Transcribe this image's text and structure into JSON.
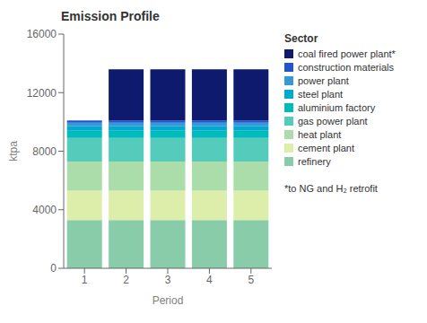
{
  "chart_data": {
    "type": "bar",
    "title": "Emission Profile",
    "x_label": "Period",
    "y_label": "ktpa",
    "categories": [
      "1",
      "2",
      "3",
      "4",
      "5"
    ],
    "series": [
      {
        "name": "coal fired power plant*",
        "color": "#0d1a6e",
        "values": [
          0,
          3500,
          3500,
          3500,
          3500
        ]
      },
      {
        "name": "construction materials",
        "color": "#2255cc",
        "values": [
          150,
          150,
          150,
          150,
          150
        ]
      },
      {
        "name": "power plant",
        "color": "#3399dd",
        "values": [
          250,
          250,
          250,
          250,
          250
        ]
      },
      {
        "name": "steel plant",
        "color": "#00aacc",
        "values": [
          300,
          300,
          300,
          300,
          300
        ]
      },
      {
        "name": "aluminium factory",
        "color": "#00bbbb",
        "values": [
          500,
          500,
          500,
          500,
          500
        ]
      },
      {
        "name": "gas power plant",
        "color": "#55ccbb",
        "values": [
          1600,
          1600,
          1600,
          1600,
          1600
        ]
      },
      {
        "name": "heat plant",
        "color": "#aaddaa",
        "values": [
          2000,
          2000,
          2000,
          2000,
          2000
        ]
      },
      {
        "name": "cement plant",
        "color": "#ddeeaa",
        "values": [
          2000,
          2000,
          2000,
          2000,
          2000
        ]
      },
      {
        "name": "refinery",
        "color": "#88ccaa",
        "values": [
          3300,
          3300,
          3300,
          3300,
          3300
        ]
      }
    ],
    "ylim": [
      0,
      16000
    ],
    "yticks": [
      0,
      4000,
      8000,
      12000,
      16000
    ],
    "stacked": true,
    "grid": false,
    "legend": "right",
    "legend_title": "Sector",
    "annotations": [
      "*to NG and H₂ retrofit"
    ]
  }
}
